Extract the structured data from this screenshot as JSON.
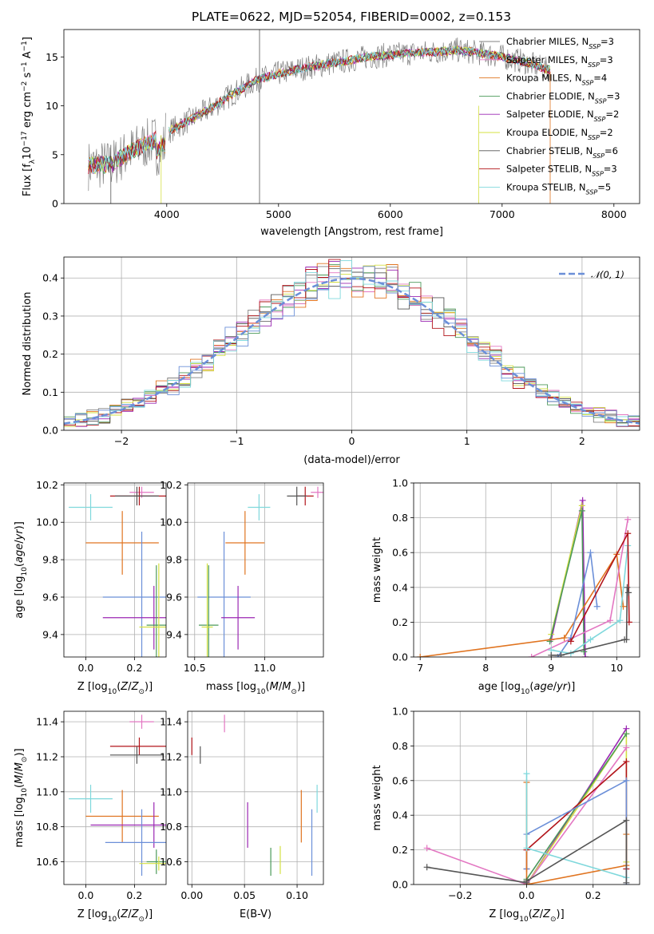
{
  "title": "PLATE=0622, MJD=52054, FIBERID=0002, z=0.153",
  "chart_data": [
    {
      "id": "spectrum",
      "type": "line",
      "xlabel": "wavelength [Angstrom, rest frame]",
      "ylabel": "Flux [f_λ 10^-17 erg cm^-2 s^-1 A^-1]",
      "xlim": [
        3080,
        8230
      ],
      "ylim": [
        0,
        17.8
      ],
      "xticks": [
        4000,
        5000,
        6000,
        7000,
        8000
      ],
      "yticks": [
        0,
        5,
        10,
        15
      ],
      "legend_position": "top-right",
      "series": [
        {
          "name": "Chabrier MILES, N_SSP=3",
          "color": "#808080"
        },
        {
          "name": "Salpeter MILES, N_SSP=3",
          "color": "#e377c2"
        },
        {
          "name": "Kroupa MILES, N_SSP=4",
          "color": "#e07420"
        },
        {
          "name": "Chabrier ELODIE, N_SSP=3",
          "color": "#4c9a5a"
        },
        {
          "name": "Salpeter ELODIE, N_SSP=2",
          "color": "#9b27b3"
        },
        {
          "name": "Kroupa ELODIE, N_SSP=2",
          "color": "#d4e042"
        },
        {
          "name": "Chabrier STELIB, N_SSP=6",
          "color": "#555555"
        },
        {
          "name": "Salpeter STELIB, N_SSP=3",
          "color": "#b2141a"
        },
        {
          "name": "Kroupa STELIB, N_SSP=5",
          "color": "#7fd8dc"
        }
      ],
      "data_trend": {
        "x": [
          3300,
          3500,
          3700,
          3900,
          4000,
          4200,
          4400,
          4600,
          4800,
          5000,
          5200,
          5400,
          5600,
          5800,
          6000,
          6200,
          6400,
          6600,
          6800,
          7000,
          7200,
          7400
        ],
        "y": [
          3.9,
          4.0,
          5.5,
          6.5,
          7.3,
          8.5,
          9.8,
          11.3,
          12.6,
          13.3,
          13.8,
          14.2,
          14.6,
          15.0,
          15.2,
          15.4,
          15.5,
          15.7,
          15.4,
          15.0,
          14.5,
          13.7
        ]
      }
    },
    {
      "id": "residuals",
      "type": "bar",
      "xlabel": "(data-model)/error",
      "ylabel": "Normed distribution",
      "xlim": [
        -2.5,
        2.5
      ],
      "ylim": [
        0,
        0.455
      ],
      "xticks": [
        -2,
        -1,
        0,
        1,
        2
      ],
      "yticks": [
        0.0,
        0.1,
        0.2,
        0.3,
        0.4
      ],
      "legend": "𝒩(0, 1)",
      "bin_width": 0.1,
      "reference_mean": 0,
      "reference_std": 1
    },
    {
      "id": "age_vs_Z",
      "type": "scatter",
      "xlabel": "Z [log10(Z/Z_sun)]",
      "ylabel": "age  [log10(age/yr)]",
      "xlim": [
        -0.09,
        0.33
      ],
      "ylim": [
        9.28,
        10.21
      ],
      "xticks": [
        0.0,
        0.2
      ],
      "yticks": [
        9.4,
        9.6,
        9.8,
        10.0,
        10.2
      ],
      "points": [
        {
          "color": "#e377c2",
          "x": 0.23,
          "xerr": 0.05,
          "y": 10.16,
          "yerr": 0.03
        },
        {
          "color": "#b2141a",
          "x": 0.22,
          "xerr": 0.12,
          "y": 10.14,
          "yerr": 0.05
        },
        {
          "color": "#555555",
          "x": 0.21,
          "xerr": 0.09,
          "y": 10.14,
          "yerr": 0.05
        },
        {
          "color": "#7fd8dc",
          "x": 0.02,
          "xerr": 0.09,
          "y": 10.08,
          "yerr": 0.07
        },
        {
          "color": "#e07420",
          "x": 0.15,
          "xerr": 0.15,
          "y": 9.89,
          "yerr": 0.17
        },
        {
          "color": "#6b8fd8",
          "x": 0.23,
          "xerr": 0.16,
          "y": 9.6,
          "yerr": 0.35
        },
        {
          "color": "#9b27b3",
          "x": 0.28,
          "xerr": 0.21,
          "y": 9.49,
          "yerr": 0.17
        },
        {
          "color": "#4c9a5a",
          "x": 0.29,
          "xerr": 0.04,
          "y": 9.45,
          "yerr": 0.32
        },
        {
          "color": "#d4e042",
          "x": 0.3,
          "xerr": 0.08,
          "y": 9.44,
          "yerr": 0.34
        }
      ]
    },
    {
      "id": "age_vs_mass",
      "type": "scatter",
      "xlabel": "mass [log10(M/M_sun)]",
      "ylabel": "",
      "xlim": [
        10.45,
        11.42
      ],
      "ylim": [
        9.28,
        10.21
      ],
      "xticks": [
        10.5,
        11.0
      ],
      "yticks": [
        9.4,
        9.6,
        9.8,
        10.0,
        10.2
      ],
      "points": [
        {
          "color": "#e377c2",
          "x": 11.38,
          "xerr": 0.05,
          "y": 10.16,
          "yerr": 0.03
        },
        {
          "color": "#b2141a",
          "x": 11.29,
          "xerr": 0.06,
          "y": 10.14,
          "yerr": 0.05
        },
        {
          "color": "#555555",
          "x": 11.23,
          "xerr": 0.07,
          "y": 10.14,
          "yerr": 0.05
        },
        {
          "color": "#7fd8dc",
          "x": 10.96,
          "xerr": 0.08,
          "y": 10.08,
          "yerr": 0.07
        },
        {
          "color": "#e07420",
          "x": 10.86,
          "xerr": 0.14,
          "y": 9.89,
          "yerr": 0.17
        },
        {
          "color": "#6b8fd8",
          "x": 10.71,
          "xerr": 0.19,
          "y": 9.6,
          "yerr": 0.35
        },
        {
          "color": "#9b27b3",
          "x": 10.81,
          "xerr": 0.12,
          "y": 9.49,
          "yerr": 0.17
        },
        {
          "color": "#4c9a5a",
          "x": 10.6,
          "xerr": 0.07,
          "y": 9.45,
          "yerr": 0.32
        },
        {
          "color": "#d4e042",
          "x": 10.59,
          "xerr": 0.04,
          "y": 9.44,
          "yerr": 0.34
        }
      ]
    },
    {
      "id": "weight_vs_age",
      "type": "line",
      "xlabel": "age  [log10(age/yr)]",
      "ylabel": "mass weight",
      "xlim": [
        6.9,
        10.35
      ],
      "ylim": [
        0,
        1
      ],
      "xticks": [
        7,
        8,
        9,
        10
      ],
      "yticks": [
        0.0,
        0.2,
        0.4,
        0.6,
        0.8,
        1.0
      ],
      "series": [
        {
          "color": "#9b27b3",
          "x": [
            9.0,
            9.48,
            9.52
          ],
          "y": [
            0.1,
            0.9,
            0.0
          ]
        },
        {
          "color": "#d4e042",
          "x": [
            9.0,
            9.47
          ],
          "y": [
            0.13,
            0.87
          ]
        },
        {
          "color": "#4c9a5a",
          "x": [
            8.98,
            9.47,
            9.5
          ],
          "y": [
            0.09,
            0.84,
            0.03
          ]
        },
        {
          "color": "#e07420",
          "x": [
            7.0,
            9.2,
            10.0,
            10.1
          ],
          "y": [
            0.0,
            0.11,
            0.59,
            0.29
          ]
        },
        {
          "color": "#e377c2",
          "x": [
            8.7,
            9.9,
            10.17
          ],
          "y": [
            0.0,
            0.21,
            0.79
          ]
        },
        {
          "color": "#6b8fd8",
          "x": [
            9.1,
            9.3,
            9.6,
            9.7
          ],
          "y": [
            0.0,
            0.11,
            0.6,
            0.29
          ]
        },
        {
          "color": "#7fd8dc",
          "x": [
            9.0,
            9.3,
            9.6,
            10.05,
            10.17
          ],
          "y": [
            0.04,
            0.02,
            0.1,
            0.21,
            0.64
          ]
        },
        {
          "color": "#b2141a",
          "x": [
            9.3,
            10.17,
            10.19
          ],
          "y": [
            0.09,
            0.71,
            0.2
          ]
        },
        {
          "color": "#555555",
          "x": [
            9.0,
            9.15,
            10.12,
            10.15,
            10.16,
            10.18
          ],
          "y": [
            0.01,
            0.01,
            0.1,
            0.1,
            0.4,
            0.37
          ]
        }
      ]
    },
    {
      "id": "mass_vs_Z",
      "type": "scatter",
      "xlabel": "Z [log10(Z/Z_sun)]",
      "ylabel": "mass [log10(M/M_sun)]",
      "xlim": [
        -0.09,
        0.33
      ],
      "ylim": [
        10.47,
        11.46
      ],
      "xticks": [
        0.0,
        0.2
      ],
      "yticks": [
        10.6,
        10.8,
        11.0,
        11.2,
        11.4
      ],
      "points": [
        {
          "color": "#e377c2",
          "x": 0.23,
          "xerr": 0.05,
          "y": 11.4,
          "yerr": 0.04
        },
        {
          "color": "#b2141a",
          "x": 0.22,
          "xerr": 0.12,
          "y": 11.26,
          "yerr": 0.05
        },
        {
          "color": "#555555",
          "x": 0.21,
          "xerr": 0.11,
          "y": 11.21,
          "yerr": 0.05
        },
        {
          "color": "#7fd8dc",
          "x": 0.02,
          "xerr": 0.09,
          "y": 10.96,
          "yerr": 0.08
        },
        {
          "color": "#e07420",
          "x": 0.15,
          "xerr": 0.15,
          "y": 10.86,
          "yerr": 0.15
        },
        {
          "color": "#9b27b3",
          "x": 0.28,
          "xerr": 0.26,
          "y": 10.81,
          "yerr": 0.13
        },
        {
          "color": "#6b8fd8",
          "x": 0.23,
          "xerr": 0.15,
          "y": 10.71,
          "yerr": 0.19
        },
        {
          "color": "#4c9a5a",
          "x": 0.29,
          "xerr": 0.04,
          "y": 10.6,
          "yerr": 0.07
        },
        {
          "color": "#d4e042",
          "x": 0.3,
          "xerr": 0.08,
          "y": 10.59,
          "yerr": 0.04
        }
      ]
    },
    {
      "id": "mass_vs_ebv",
      "type": "scatter",
      "xlabel": "E(B-V)",
      "ylabel": "",
      "xlim": [
        -0.004,
        0.125
      ],
      "ylim": [
        10.47,
        11.46
      ],
      "xticks": [
        0.0,
        0.05,
        0.1
      ],
      "yticks": [
        10.6,
        10.8,
        11.0,
        11.2,
        11.4
      ],
      "points": [
        {
          "color": "#e377c2",
          "x": 0.031,
          "y": 11.39,
          "yerr": 0.05
        },
        {
          "color": "#b2141a",
          "x": 0.0,
          "y": 11.26,
          "yerr": 0.05
        },
        {
          "color": "#555555",
          "x": 0.008,
          "y": 11.21,
          "yerr": 0.05
        },
        {
          "color": "#7fd8dc",
          "x": 0.119,
          "y": 10.96,
          "yerr": 0.08
        },
        {
          "color": "#e07420",
          "x": 0.104,
          "y": 10.86,
          "yerr": 0.15
        },
        {
          "color": "#9b27b3",
          "x": 0.053,
          "y": 10.81,
          "yerr": 0.13
        },
        {
          "color": "#6b8fd8",
          "x": 0.114,
          "y": 10.71,
          "yerr": 0.19
        },
        {
          "color": "#4c9a5a",
          "x": 0.075,
          "y": 10.6,
          "yerr": 0.08
        },
        {
          "color": "#d4e042",
          "x": 0.084,
          "y": 10.61,
          "yerr": 0.08
        }
      ]
    },
    {
      "id": "weight_vs_Z",
      "type": "line",
      "xlabel": "Z [log10(Z/Z_sun)]",
      "ylabel": "mass weight",
      "xlim": [
        -0.34,
        0.34
      ],
      "ylim": [
        0,
        1
      ],
      "xticks": [
        -0.2,
        0.0,
        0.2
      ],
      "yticks": [
        0.0,
        0.2,
        0.4,
        0.6,
        0.8,
        1.0
      ],
      "series": [
        {
          "color": "#9b27b3",
          "x": [
            0.0,
            0.3
          ],
          "y": [
            0.0,
            0.9
          ]
        },
        {
          "color": "#d4e042",
          "x": [
            0.0,
            0.3,
            0.3
          ],
          "y": [
            0.0,
            0.87,
            0.13
          ]
        },
        {
          "color": "#4c9a5a",
          "x": [
            0.0,
            0.3
          ],
          "y": [
            0.03,
            0.87
          ]
        },
        {
          "color": "#e377c2",
          "x": [
            -0.3,
            0.0,
            0.3
          ],
          "y": [
            0.21,
            0.0,
            0.79
          ]
        },
        {
          "color": "#b2141a",
          "x": [
            0.0,
            0.0,
            0.3,
            0.3
          ],
          "y": [
            0.09,
            0.2,
            0.71,
            0.09
          ]
        },
        {
          "color": "#6b8fd8",
          "x": [
            0.0,
            0.0,
            0.3,
            0.3
          ],
          "y": [
            0.09,
            0.29,
            0.6,
            0.0
          ]
        },
        {
          "color": "#e07420",
          "x": [
            0.0,
            0.0,
            0.3,
            0.3
          ],
          "y": [
            0.59,
            0.0,
            0.11,
            0.29
          ]
        },
        {
          "color": "#7fd8dc",
          "x": [
            0.0,
            0.0,
            0.3
          ],
          "y": [
            0.64,
            0.21,
            0.04
          ]
        },
        {
          "color": "#555555",
          "x": [
            -0.3,
            0.0,
            0.0,
            0.3,
            0.3
          ],
          "y": [
            0.1,
            0.01,
            0.02,
            0.37,
            0.01
          ]
        }
      ]
    }
  ]
}
